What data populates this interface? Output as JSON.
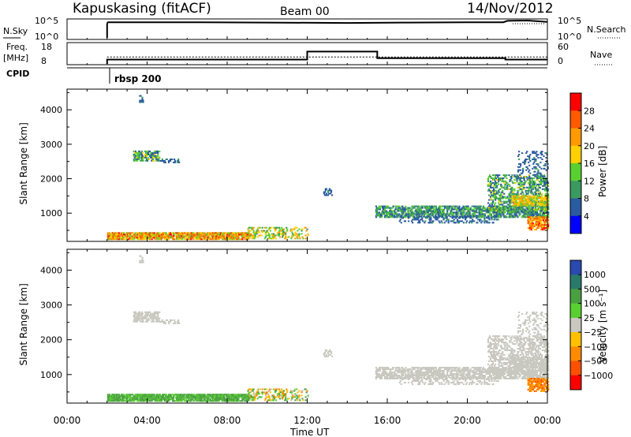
{
  "header": {
    "station": "Kapuskasing (fitACF)",
    "beam": "Beam 00",
    "date": "14/Nov/2012"
  },
  "noise_panel": {
    "left_label": "N.Sky",
    "right_label": "N.Search",
    "left_ticks": [
      "10^5",
      "10^0"
    ],
    "right_ticks": [
      "10^5",
      "10^0"
    ]
  },
  "freq_panel": {
    "left_label_1": "Freq.",
    "left_label_2": "[MHz]",
    "right_label": "Nave",
    "left_ticks": [
      "18",
      "8"
    ],
    "right_ticks": [
      "60",
      "0"
    ]
  },
  "cpid": {
    "label": "CPID",
    "program": "rbsp 200"
  },
  "x_axis": {
    "label": "Time UT",
    "tick_labels": [
      "00:00",
      "04:00",
      "08:00",
      "12:00",
      "16:00",
      "20:00",
      "00:00"
    ]
  },
  "power_colorbar": {
    "title": "Power [dB]",
    "ticks": [
      "28",
      "24",
      "20",
      "16",
      "12",
      "8",
      "4"
    ],
    "colors": [
      "#ff0000",
      "#ff5a00",
      "#ff9a00",
      "#ffd000",
      "#5ad030",
      "#3a9a60",
      "#2a5aa0",
      "#0000ff"
    ]
  },
  "velocity_colorbar": {
    "title": "Velocity [m s⁻¹]",
    "ticks": [
      "1000",
      "500",
      "100",
      "25",
      "−25",
      "−100",
      "−500",
      "−1000"
    ],
    "colors": [
      "#2a4ab0",
      "#2a7a6a",
      "#4aa040",
      "#5ad030",
      "#c8c8c0",
      "#ffc000",
      "#ff8a00",
      "#ff5000",
      "#ff0000"
    ]
  },
  "chart_data": [
    {
      "type": "line",
      "name": "noise",
      "x_unit": "hours UT",
      "xlim": [
        0,
        24
      ],
      "series": [
        {
          "x": [
            2.0,
            2.05,
            6,
            10,
            14,
            17,
            20,
            21.8,
            22,
            23,
            24
          ],
          "y": [
            4.2,
            4.5,
            4.5,
            4.4,
            4.3,
            4.4,
            4.5,
            4.5,
            4.9,
            5.0,
            4.6
          ]
        }
      ]
    },
    {
      "type": "line",
      "name": "frequency",
      "y_unit": "MHz",
      "ylim": [
        8,
        18
      ],
      "xlim": [
        0,
        24
      ],
      "series": [
        {
          "x": [
            2.0,
            12.0,
            12.0,
            15.5,
            15.5,
            21.9,
            21.9,
            24
          ],
          "y": [
            10.3,
            10.3,
            14.5,
            14.5,
            11.0,
            11.0,
            10.3,
            10.3
          ]
        }
      ],
      "nave": {
        "ylim": [
          0,
          60
        ],
        "x": [
          2.0,
          24
        ],
        "y": [
          22,
          22
        ]
      }
    },
    {
      "type": "heatmap",
      "name": "power",
      "xlim": [
        0,
        24
      ],
      "ylim": [
        180,
        4600
      ],
      "yticks": [
        1000,
        2000,
        3000,
        4000
      ],
      "ylabel": "Slant Range [km]",
      "clim": [
        0,
        30
      ],
      "regions": [
        {
          "t": [
            2.0,
            9.0
          ],
          "r": [
            220,
            420
          ],
          "v": [
            12,
            28
          ],
          "d": 0.75
        },
        {
          "t": [
            9.0,
            12.0
          ],
          "r": [
            240,
            580
          ],
          "v": [
            8,
            22
          ],
          "d": 0.3
        },
        {
          "t": [
            3.3,
            4.6
          ],
          "r": [
            2500,
            2800
          ],
          "v": [
            4,
            16
          ],
          "d": 0.55
        },
        {
          "t": [
            4.6,
            5.6
          ],
          "r": [
            2450,
            2550
          ],
          "v": [
            4,
            10
          ],
          "d": 0.35
        },
        {
          "t": [
            3.6,
            3.8
          ],
          "r": [
            4200,
            4400
          ],
          "v": [
            4,
            10
          ],
          "d": 0.6
        },
        {
          "t": [
            15.4,
            24.0
          ],
          "r": [
            860,
            1200
          ],
          "v": [
            4,
            14
          ],
          "d": 0.55
        },
        {
          "t": [
            16.5,
            21.5
          ],
          "r": [
            700,
            900
          ],
          "v": [
            4,
            8
          ],
          "d": 0.3
        },
        {
          "t": [
            21.0,
            24.0
          ],
          "r": [
            1000,
            2100
          ],
          "v": [
            4,
            16
          ],
          "d": 0.35
        },
        {
          "t": [
            22.2,
            24.0
          ],
          "r": [
            1200,
            1500
          ],
          "v": [
            12,
            22
          ],
          "d": 0.6
        },
        {
          "t": [
            23.0,
            24.0
          ],
          "r": [
            500,
            900
          ],
          "v": [
            16,
            28
          ],
          "d": 0.6
        },
        {
          "t": [
            22.5,
            24.0
          ],
          "r": [
            2000,
            2800
          ],
          "v": [
            4,
            8
          ],
          "d": 0.2
        },
        {
          "t": [
            12.8,
            13.2
          ],
          "r": [
            1500,
            1700
          ],
          "v": [
            4,
            8
          ],
          "d": 0.4
        }
      ]
    },
    {
      "type": "heatmap",
      "name": "velocity",
      "xlim": [
        0,
        24
      ],
      "ylim": [
        180,
        4600
      ],
      "yticks": [
        1000,
        2000,
        3000,
        4000
      ],
      "ylabel": "Slant Range [km]",
      "clim": [
        -1000,
        1000
      ],
      "regions": [
        {
          "t": [
            2.0,
            9.0
          ],
          "r": [
            220,
            420
          ],
          "v": [
            50,
            200
          ],
          "d": 0.75
        },
        {
          "t": [
            9.0,
            12.0
          ],
          "r": [
            240,
            580
          ],
          "v": [
            -200,
            200
          ],
          "d": 0.3
        },
        {
          "t": [
            3.3,
            4.6
          ],
          "r": [
            2500,
            2800
          ],
          "v": [
            -20,
            20
          ],
          "d": 0.55
        },
        {
          "t": [
            4.6,
            5.6
          ],
          "r": [
            2450,
            2550
          ],
          "v": [
            -20,
            20
          ],
          "d": 0.35
        },
        {
          "t": [
            3.6,
            3.8
          ],
          "r": [
            4200,
            4400
          ],
          "v": [
            -20,
            20
          ],
          "d": 0.6
        },
        {
          "t": [
            15.4,
            24.0
          ],
          "r": [
            860,
            1200
          ],
          "v": [
            -20,
            20
          ],
          "d": 0.55
        },
        {
          "t": [
            16.5,
            21.5
          ],
          "r": [
            700,
            900
          ],
          "v": [
            -20,
            20
          ],
          "d": 0.3
        },
        {
          "t": [
            21.0,
            24.0
          ],
          "r": [
            1000,
            2100
          ],
          "v": [
            -20,
            20
          ],
          "d": 0.35
        },
        {
          "t": [
            22.2,
            24.0
          ],
          "r": [
            1200,
            1500
          ],
          "v": [
            -20,
            20
          ],
          "d": 0.6
        },
        {
          "t": [
            23.0,
            24.0
          ],
          "r": [
            500,
            900
          ],
          "v": [
            -600,
            -60
          ],
          "d": 0.6
        },
        {
          "t": [
            22.5,
            24.0
          ],
          "r": [
            2000,
            2800
          ],
          "v": [
            -20,
            20
          ],
          "d": 0.2
        },
        {
          "t": [
            12.8,
            13.2
          ],
          "r": [
            1500,
            1700
          ],
          "v": [
            -20,
            20
          ],
          "d": 0.4
        }
      ]
    }
  ]
}
